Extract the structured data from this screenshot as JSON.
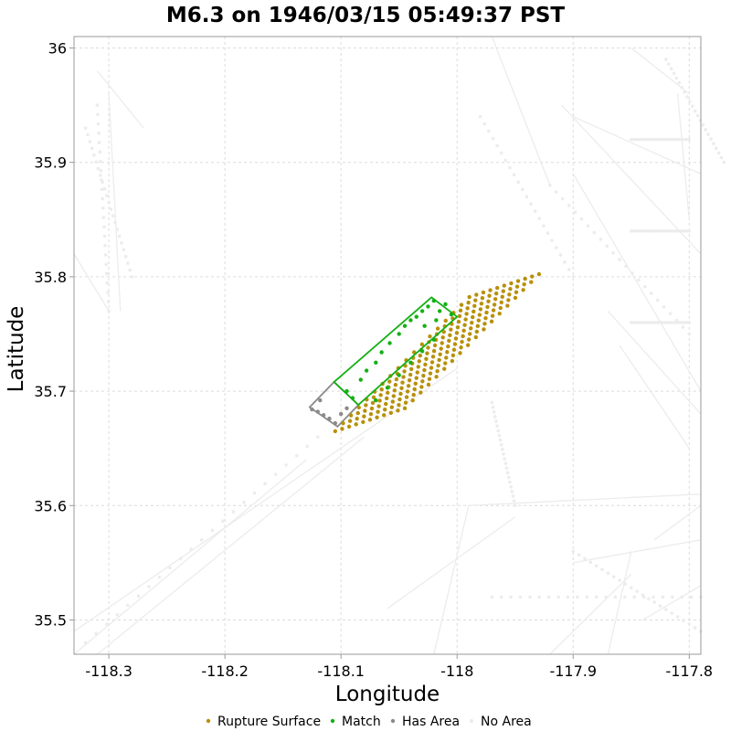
{
  "chart_data": {
    "type": "scatter",
    "title": "M6.3 on 1946/03/15 05:49:37 PST",
    "xlabel": "Longitude",
    "ylabel": "Latitude",
    "xlim": [
      -118.33,
      -117.79
    ],
    "ylim": [
      35.47,
      36.01
    ],
    "x_ticks": [
      -118.3,
      -118.2,
      -118.1,
      -118.0,
      -117.9,
      -117.8
    ],
    "x_tick_labels": [
      "-118.3",
      "-118.2",
      "-118.1",
      "-118",
      "-117.9",
      "-117.8"
    ],
    "y_ticks": [
      35.5,
      35.6,
      35.7,
      35.8,
      35.9,
      36.0
    ],
    "y_tick_labels": [
      "35.5",
      "35.6",
      "35.7",
      "35.8",
      "35.9",
      "36"
    ],
    "grid": true,
    "legend_placement": "bottom-center",
    "colors": {
      "rupture_surface": "#b8900a",
      "match": "#14b014",
      "has_area": "#8a8a8a",
      "no_area": "#ececec",
      "grid": "#dcdcdc"
    },
    "rupture_surface": {
      "row_start": [
        -118.105,
        35.665
      ],
      "row_end": [
        -118.045,
        35.685
      ],
      "strike_step": [
        0.0068,
        0.0069
      ],
      "row_count": 18,
      "points_per_row": 11
    },
    "match_outline": [
      [
        -118.085,
        35.688
      ],
      [
        -118.0,
        35.765
      ],
      [
        -118.022,
        35.782
      ],
      [
        -118.106,
        35.708
      ]
    ],
    "match_points": [
      [
        -118.095,
        35.7
      ],
      [
        -118.09,
        35.694
      ],
      [
        -118.083,
        35.71
      ],
      [
        -118.078,
        35.718
      ],
      [
        -118.07,
        35.725
      ],
      [
        -118.065,
        35.734
      ],
      [
        -118.058,
        35.742
      ],
      [
        -118.05,
        35.75
      ],
      [
        -118.045,
        35.757
      ],
      [
        -118.04,
        35.762
      ],
      [
        -118.035,
        35.765
      ],
      [
        -118.03,
        35.77
      ],
      [
        -118.025,
        35.774
      ],
      [
        -118.02,
        35.779
      ],
      [
        -118.015,
        35.77
      ],
      [
        -118.01,
        35.776
      ],
      [
        -118.07,
        35.692
      ],
      [
        -118.06,
        35.703
      ],
      [
        -118.05,
        35.714
      ],
      [
        -118.04,
        35.725
      ],
      [
        -118.03,
        35.735
      ],
      [
        -118.02,
        35.745
      ],
      [
        -118.028,
        35.757
      ],
      [
        -118.018,
        35.762
      ],
      [
        -118.005,
        35.767
      ]
    ],
    "has_area_outline": [
      [
        -118.127,
        35.686
      ],
      [
        -118.103,
        35.669
      ],
      [
        -118.085,
        35.688
      ],
      [
        -118.106,
        35.708
      ]
    ],
    "has_area_points": [
      [
        -118.125,
        35.684
      ],
      [
        -118.12,
        35.682
      ],
      [
        -118.115,
        35.679
      ],
      [
        -118.11,
        35.676
      ],
      [
        -118.105,
        35.672
      ],
      [
        -118.118,
        35.692
      ],
      [
        -118.1,
        35.68
      ],
      [
        -118.095,
        35.685
      ]
    ],
    "no_area_faults": [
      [
        [
          -118.33,
          35.49
        ],
        [
          -118.0,
          35.72
        ]
      ],
      [
        [
          -118.33,
          35.47
        ],
        [
          -118.13,
          35.64
        ]
      ],
      [
        [
          -118.31,
          35.47
        ],
        [
          -118.08,
          35.66
        ]
      ],
      [
        [
          -118.33,
          35.82
        ],
        [
          -118.3,
          35.77
        ]
      ],
      [
        [
          -118.3,
          35.96
        ],
        [
          -118.29,
          35.77
        ]
      ],
      [
        [
          -118.31,
          35.98
        ],
        [
          -118.27,
          35.93
        ]
      ],
      [
        [
          -117.9,
          35.94
        ],
        [
          -117.79,
          35.89
        ]
      ],
      [
        [
          -117.97,
          36.01
        ],
        [
          -117.92,
          35.88
        ]
      ],
      [
        [
          -117.91,
          35.95
        ],
        [
          -117.79,
          35.82
        ]
      ],
      [
        [
          -117.9,
          35.89
        ],
        [
          -117.79,
          35.7
        ]
      ],
      [
        [
          -117.87,
          35.77
        ],
        [
          -117.79,
          35.68
        ]
      ],
      [
        [
          -117.86,
          35.74
        ],
        [
          -117.8,
          35.65
        ]
      ],
      [
        [
          -117.83,
          35.57
        ],
        [
          -117.79,
          35.6
        ]
      ],
      [
        [
          -117.99,
          35.6
        ],
        [
          -117.79,
          35.61
        ]
      ],
      [
        [
          -117.99,
          35.6
        ],
        [
          -118.02,
          35.47
        ]
      ],
      [
        [
          -117.92,
          35.47
        ],
        [
          -117.85,
          35.54
        ]
      ],
      [
        [
          -117.9,
          35.55
        ],
        [
          -117.79,
          35.57
        ]
      ],
      [
        [
          -117.84,
          35.5
        ],
        [
          -117.79,
          35.53
        ]
      ],
      [
        [
          -117.85,
          35.56
        ],
        [
          -117.87,
          35.47
        ]
      ],
      [
        [
          -117.8,
          35.85
        ],
        [
          -117.81,
          35.96
        ]
      ],
      [
        [
          -117.85,
          36.0
        ],
        [
          -117.8,
          35.96
        ]
      ],
      [
        [
          -118.06,
          35.51
        ],
        [
          -117.95,
          35.59
        ]
      ]
    ],
    "no_area_dots": [
      [
        [
          -118.31,
          35.95
        ],
        [
          -118.3,
          35.77
        ]
      ],
      [
        [
          -118.32,
          35.93
        ],
        [
          -118.28,
          35.8
        ]
      ],
      [
        [
          -117.82,
          35.99
        ],
        [
          -117.77,
          35.9
        ]
      ],
      [
        [
          -117.98,
          35.94
        ],
        [
          -117.9,
          35.8
        ]
      ],
      [
        [
          -117.92,
          35.88
        ],
        [
          -117.8,
          35.75
        ]
      ],
      [
        [
          -117.97,
          35.69
        ],
        [
          -117.95,
          35.6
        ]
      ],
      [
        [
          -117.97,
          35.52
        ],
        [
          -117.79,
          35.52
        ]
      ],
      [
        [
          -117.9,
          35.56
        ],
        [
          -117.79,
          35.49
        ]
      ],
      [
        [
          -118.32,
          35.48
        ],
        [
          -118.12,
          35.66
        ]
      ],
      [
        [
          -117.85,
          35.92
        ],
        [
          -117.8,
          35.92
        ]
      ],
      [
        [
          -117.85,
          35.84
        ],
        [
          -117.8,
          35.84
        ]
      ],
      [
        [
          -117.85,
          35.76
        ],
        [
          -117.8,
          35.76
        ]
      ]
    ],
    "legend": [
      "Rupture Surface",
      "Match",
      "Has Area",
      "No Area"
    ]
  }
}
